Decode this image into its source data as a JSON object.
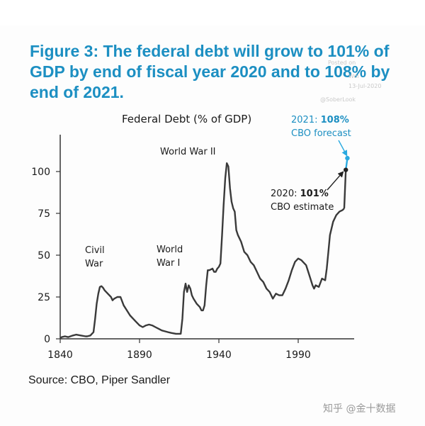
{
  "figure": {
    "title": "Figure 3: The federal debt will grow to 101% of GDP by end of fiscal year 2020 and to 108% by end of 2021.",
    "source": "Source: CBO, Piper Sandler",
    "watermark": [
      "Posted on",
      "Wol",
      "13-Jul-2020",
      "@SoberLook"
    ],
    "credit": "知乎 @金十数据",
    "colors": {
      "title": "#1c8fc2",
      "line": "#3a3a3a",
      "forecast": "#29a9e0",
      "estimate": "#222222"
    }
  },
  "chart_data": {
    "type": "line",
    "title": "Federal Debt (% of GDP)",
    "xlabel": "",
    "ylabel": "",
    "xlim": [
      1840,
      2022
    ],
    "ylim": [
      0,
      115
    ],
    "xticks": [
      1840,
      1890,
      1940,
      1990
    ],
    "yticks": [
      0,
      25,
      50,
      75,
      100
    ],
    "grid": false,
    "legend": "none",
    "series": [
      {
        "x": [
          1840,
          1841,
          1843,
          1845,
          1848,
          1850,
          1853,
          1856,
          1857,
          1859,
          1861,
          1862,
          1863,
          1864,
          1865,
          1866,
          1867,
          1868,
          1870,
          1872,
          1873,
          1874,
          1876,
          1878,
          1880,
          1882,
          1884,
          1886,
          1888,
          1890,
          1892,
          1894,
          1896,
          1898,
          1900,
          1902,
          1904,
          1906,
          1908,
          1910,
          1913,
          1916,
          1917,
          1918,
          1919,
          1920,
          1921,
          1922,
          1923,
          1924,
          1926,
          1928,
          1929,
          1930,
          1931,
          1932,
          1933,
          1934,
          1936,
          1937,
          1938,
          1939,
          1940,
          1941,
          1942,
          1943,
          1944,
          1945,
          1946,
          1947,
          1948,
          1949,
          1950,
          1951,
          1952,
          1954,
          1956,
          1958,
          1960,
          1962,
          1964,
          1966,
          1968,
          1970,
          1972,
          1974,
          1976,
          1978,
          1980,
          1982,
          1984,
          1986,
          1988,
          1990,
          1992,
          1993,
          1995,
          1997,
          1999,
          2000,
          2001,
          2003,
          2005,
          2007,
          2008,
          2009,
          2010,
          2012,
          2014,
          2016,
          2018,
          2019
        ],
        "y": [
          0.5,
          1,
          1.5,
          1,
          2,
          2.5,
          2,
          1.5,
          1.5,
          2,
          4,
          12,
          21,
          27,
          31,
          31.5,
          30.5,
          29,
          27,
          25,
          23,
          24,
          25,
          25,
          20,
          17,
          14,
          12,
          10,
          8,
          7,
          8,
          8.5,
          8,
          7,
          6,
          5,
          4.5,
          4,
          3.5,
          3,
          3,
          12,
          28,
          33,
          28,
          32,
          30,
          26,
          24,
          21,
          19,
          17,
          17,
          20,
          32,
          41,
          41,
          42,
          40,
          40,
          42,
          43,
          45,
          62,
          80,
          96,
          105,
          103,
          90,
          82,
          78,
          76,
          65,
          62,
          58,
          52,
          50,
          46,
          44,
          40,
          36,
          34,
          30,
          28,
          24,
          27,
          26,
          26,
          30,
          35,
          41,
          46,
          48,
          47,
          46,
          44,
          38,
          32,
          30,
          32,
          31,
          36,
          35,
          42,
          52,
          62,
          70,
          74,
          76,
          77,
          78
        ]
      },
      {
        "name": "CBO estimate",
        "x": [
          2019,
          2020
        ],
        "y": [
          78,
          101
        ]
      },
      {
        "name": "CBO forecast",
        "x": [
          2020,
          2021
        ],
        "y": [
          101,
          108
        ]
      }
    ],
    "annotations": [
      {
        "lines": [
          "Civil",
          "War"
        ]
      },
      {
        "lines": [
          "World",
          "War I"
        ]
      },
      {
        "lines": [
          "World War II"
        ]
      },
      {
        "lines": [
          "2020: 101%",
          "CBO estimate"
        ],
        "point": [
          2020,
          101
        ]
      },
      {
        "lines": [
          "2021: 108%",
          "CBO forecast"
        ],
        "point": [
          2021,
          108
        ]
      }
    ]
  }
}
